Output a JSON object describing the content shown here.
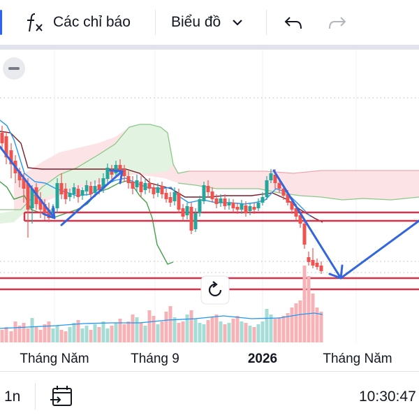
{
  "toolbar": {
    "indicators_icon": "fx-icon",
    "indicators_label": "Các chỉ báo",
    "chart_type_label": "Biểu đồ",
    "undo_icon": "undo-icon",
    "redo_icon": "redo-icon"
  },
  "chart_data": {
    "type": "candlestick",
    "x_ticks": [
      "Tháng Năm",
      "Tháng 9",
      "2026",
      "Tháng Năm"
    ],
    "overlays": [
      "ichimoku-cloud",
      "moving-averages",
      "volume"
    ],
    "annotations": [
      "horizontal-lines",
      "trend-arrows"
    ]
  },
  "bottom_bar": {
    "interval": "1n",
    "time": "10:30:47"
  },
  "colors": {
    "up": "#26a69a",
    "down": "#ef5350",
    "arrow": "#3366dd",
    "line": "#d6324a"
  }
}
